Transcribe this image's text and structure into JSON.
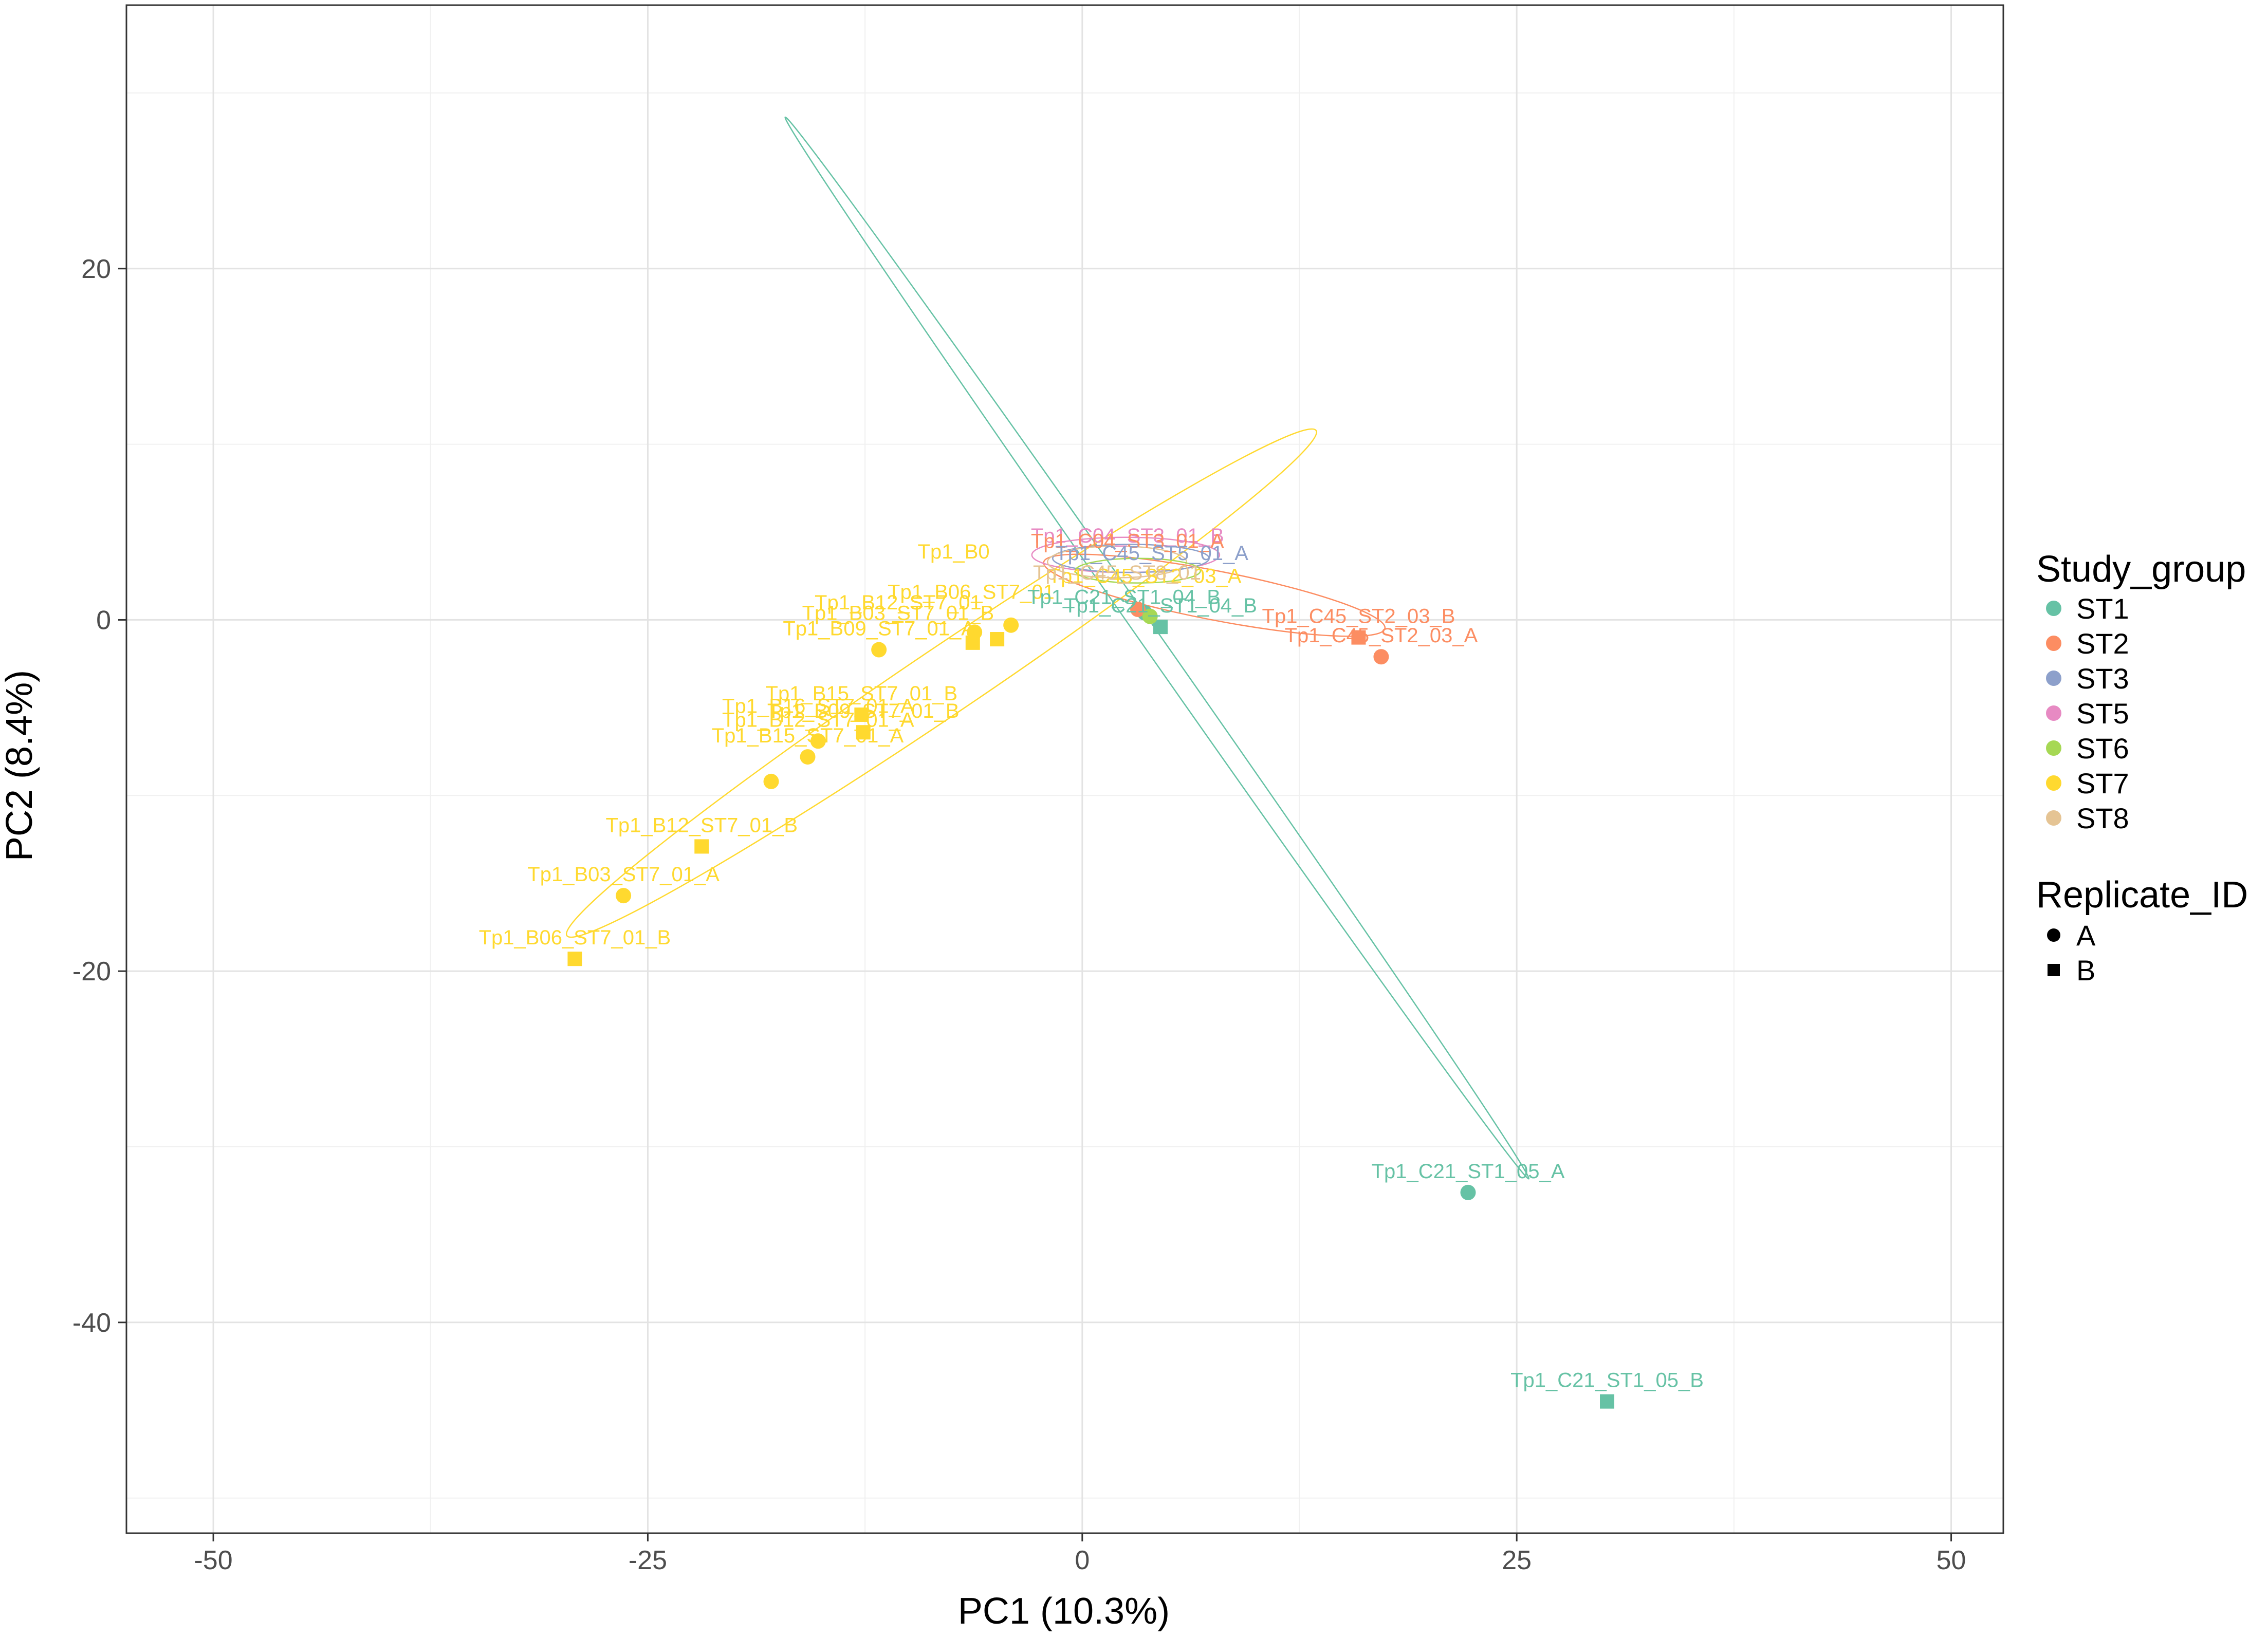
{
  "chart_data": {
    "type": "scatter",
    "title": "",
    "xlabel": "PC1 (10.3%)",
    "ylabel": "PC2 (8.4%)",
    "xlim": [
      -55,
      53
    ],
    "ylim": [
      -52,
      35
    ],
    "xticks": [
      -50,
      -25,
      0,
      25,
      50
    ],
    "xtick_labels": [
      "-50",
      "-25",
      "0",
      "25",
      "50"
    ],
    "yticks": [
      -40,
      -20,
      0,
      20
    ],
    "ytick_labels": [
      "-40",
      "-20",
      "0",
      "20"
    ],
    "grid": true,
    "legend": {
      "placement": "right",
      "color_title": "Study_group",
      "color_entries": [
        {
          "label": "ST1",
          "color": "#66c2a5"
        },
        {
          "label": "ST2",
          "color": "#fc8d62"
        },
        {
          "label": "ST3",
          "color": "#8da0cb"
        },
        {
          "label": "ST5",
          "color": "#e78ac3"
        },
        {
          "label": "ST6",
          "color": "#a6d854"
        },
        {
          "label": "ST7",
          "color": "#ffd92f"
        },
        {
          "label": "ST8",
          "color": "#e5c494"
        }
      ],
      "shape_title": "Replicate_ID",
      "shape_entries": [
        {
          "label": "A",
          "shape": "circle"
        },
        {
          "label": "B",
          "shape": "square"
        }
      ]
    },
    "points": [
      {
        "x": 22.2,
        "y": -32.6,
        "group": "ST1",
        "replicate": "A",
        "label": "Tp1_C21_ST1_05_A"
      },
      {
        "x": 30.2,
        "y": -44.5,
        "group": "ST1",
        "replicate": "B",
        "label": "Tp1_C21_ST1_05_B"
      },
      {
        "x": 4.5,
        "y": -0.4,
        "group": "ST1",
        "replicate": "B",
        "label": "Tp1_C21_ST1_04_B"
      },
      {
        "x": 3.6,
        "y": 0.4,
        "group": "ST1",
        "replicate": "A",
        "label": ""
      },
      {
        "x": 15.9,
        "y": -1.0,
        "group": "ST2",
        "replicate": "B",
        "label": "Tp1_C45_ST2_03_B"
      },
      {
        "x": 17.2,
        "y": -2.1,
        "group": "ST2",
        "replicate": "A",
        "label": "Tp1_C45_ST2_03_A"
      },
      {
        "x": 3.2,
        "y": 0.6,
        "group": "ST2",
        "replicate": "A",
        "label": ""
      },
      {
        "x": 3.9,
        "y": 0.2,
        "group": "ST6",
        "replicate": "A",
        "label": ""
      },
      {
        "x": -11.7,
        "y": -1.7,
        "group": "ST7",
        "replicate": "A",
        "label": "Tp1_B09_ST7_01_A"
      },
      {
        "x": -6.3,
        "y": -1.3,
        "group": "ST7",
        "replicate": "B",
        "label": ""
      },
      {
        "x": -6.2,
        "y": -0.7,
        "group": "ST7",
        "replicate": "A",
        "label": ""
      },
      {
        "x": -4.9,
        "y": -1.1,
        "group": "ST7",
        "replicate": "B",
        "label": ""
      },
      {
        "x": -4.1,
        "y": -0.3,
        "group": "ST7",
        "replicate": "A",
        "label": ""
      },
      {
        "x": -12.7,
        "y": -5.4,
        "group": "ST7",
        "replicate": "B",
        "label": "Tp1_B15_ST7_01_B"
      },
      {
        "x": -12.6,
        "y": -6.4,
        "group": "ST7",
        "replicate": "B",
        "label": "Tp1_B09_ST7_01_B"
      },
      {
        "x": -15.2,
        "y": -6.9,
        "group": "ST7",
        "replicate": "A",
        "label": "Tp1_B12_ST7_01_A"
      },
      {
        "x": -15.8,
        "y": -7.8,
        "group": "ST7",
        "replicate": "A",
        "label": "Tp1_B15_ST7_01_A"
      },
      {
        "x": -17.9,
        "y": -9.2,
        "group": "ST7",
        "replicate": "A",
        "label": ""
      },
      {
        "x": -21.9,
        "y": -12.9,
        "group": "ST7",
        "replicate": "B",
        "label": "Tp1_B12_ST7_01_B"
      },
      {
        "x": -26.4,
        "y": -15.7,
        "group": "ST7",
        "replicate": "A",
        "label": "Tp1_B03_ST7_01_A"
      },
      {
        "x": -29.2,
        "y": -19.3,
        "group": "ST7",
        "replicate": "B",
        "label": "Tp1_B06_ST7_01_B"
      }
    ],
    "extra_labels": [
      {
        "x": -6.4,
        "y": 1.2,
        "group": "ST7",
        "text": "Tp1_B06_ST7_01"
      },
      {
        "x": -10.6,
        "y": 0.6,
        "group": "ST7",
        "text": "Tp1_B12_ST7_01"
      },
      {
        "x": -10.6,
        "y": 0.0,
        "group": "ST7",
        "text": "Tp1_B03_ST7_01_B"
      },
      {
        "x": -15.2,
        "y": -5.3,
        "group": "ST7",
        "text": "Tp1_B16_ST7_01_A"
      },
      {
        "x": -7.4,
        "y": 3.5,
        "group": "ST7",
        "text": "Tp1_B0"
      },
      {
        "x": 2.6,
        "y": 4.4,
        "group": "ST5",
        "text": "Tp1_C04_ST3_01_B"
      },
      {
        "x": 2.6,
        "y": 4.1,
        "group": "ST2",
        "text": "Tp1_C04_ST3_01_A"
      },
      {
        "x": 4.0,
        "y": 3.4,
        "group": "ST3",
        "text": "Tp1_C45_ST5_01_A"
      },
      {
        "x": 3.6,
        "y": 2.1,
        "group": "ST7",
        "text": "Tp1_C45_ST2_03_A"
      },
      {
        "x": 2.0,
        "y": 2.3,
        "group": "ST8",
        "text": "Tp1_C45_ST8_01"
      },
      {
        "x": 2.4,
        "y": 0.9,
        "group": "ST1",
        "text": "Tp1_C21_ST1_04_B"
      }
    ],
    "ellipses": [
      {
        "group": "ST1",
        "cx": 4.3,
        "cy": -1.6,
        "rx": 37.3,
        "ry": 0.55,
        "angle": -55.0
      },
      {
        "group": "ST7",
        "cx": -8.1,
        "cy": -3.6,
        "rx": 26.0,
        "ry": 1.9,
        "angle": 34.0
      },
      {
        "group": "ST2",
        "cx": 7.6,
        "cy": 1.4,
        "rx": 10.0,
        "ry": 1.4,
        "angle": -11.0
      },
      {
        "group": "ST5",
        "cx": 2.5,
        "cy": 3.7,
        "rx": 5.4,
        "ry": 1.0,
        "angle": 0.0
      },
      {
        "group": "ST3",
        "cx": 2.8,
        "cy": 3.5,
        "rx": 4.5,
        "ry": 0.8,
        "angle": 0.0
      },
      {
        "group": "ST8",
        "cx": 2.0,
        "cy": 3.3,
        "rx": 4.0,
        "ry": 0.9,
        "angle": 0.0
      },
      {
        "group": "ST6",
        "cx": 3.2,
        "cy": 2.8,
        "rx": 3.6,
        "ry": 0.7,
        "angle": 0.0
      }
    ]
  }
}
